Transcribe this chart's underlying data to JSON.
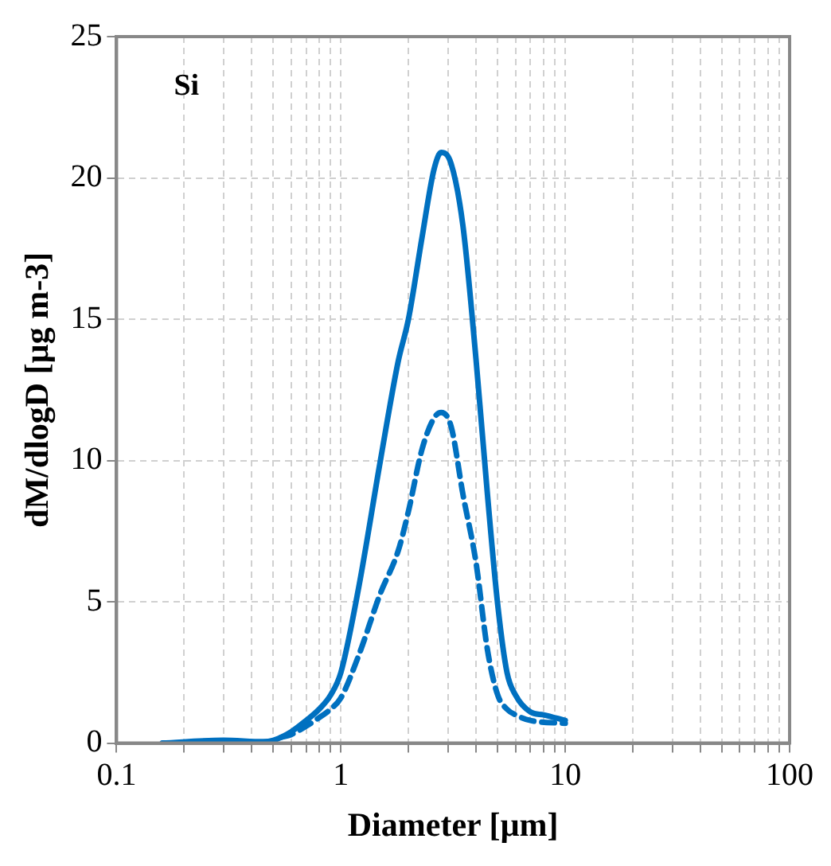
{
  "chart_data": {
    "type": "line",
    "xlabel": "Diameter [µm]",
    "ylabel": "dM/dlogD [µg m-3]",
    "annotations": [
      "Si"
    ],
    "log": "x",
    "grid": true,
    "legend": false,
    "marker": "none",
    "xlim": [
      0.1,
      100
    ],
    "ylim": [
      0,
      25
    ],
    "yticks": [
      0,
      5,
      10,
      15,
      20,
      25
    ],
    "xticks": [
      0.1,
      {
        "value": 0.2,
        "label": null
      },
      {
        "value": 0.3,
        "label": null
      },
      {
        "value": 0.4,
        "label": null
      },
      {
        "value": 0.5,
        "label": null
      },
      {
        "value": 0.6,
        "label": null
      },
      {
        "value": 0.7,
        "label": null
      },
      {
        "value": 0.8,
        "label": null
      },
      {
        "value": 0.9,
        "label": null
      },
      1,
      {
        "value": 2,
        "label": null
      },
      {
        "value": 3,
        "label": null
      },
      {
        "value": 4,
        "label": null
      },
      {
        "value": 5,
        "label": null
      },
      {
        "value": 6,
        "label": null
      },
      {
        "value": 7,
        "label": null
      },
      {
        "value": 8,
        "label": null
      },
      {
        "value": 9,
        "label": null
      },
      10,
      {
        "value": 20,
        "label": null
      },
      {
        "value": 30,
        "label": null
      },
      {
        "value": 40,
        "label": null
      },
      {
        "value": 50,
        "label": null
      },
      {
        "value": 60,
        "label": null
      },
      {
        "value": 70,
        "label": null
      },
      {
        "value": 80,
        "label": null
      },
      {
        "value": 90,
        "label": null
      },
      100
    ],
    "series": [
      {
        "color": "#0070c0",
        "line_style": "solid",
        "x": [
          0.16,
          0.3,
          0.45,
          0.5,
          0.6,
          0.7,
          0.8,
          0.9,
          1.0,
          1.2,
          1.5,
          1.8,
          2.0,
          2.3,
          2.6,
          2.8,
          3.1,
          3.5,
          4,
          4.5,
          5,
          5.5,
          6,
          7,
          8,
          10
        ],
        "values": [
          0,
          0.1,
          0.05,
          0.1,
          0.4,
          0.8,
          1.2,
          1.7,
          2.5,
          5.5,
          10,
          13.5,
          15,
          17.9,
          20.3,
          20.9,
          20.5,
          18.3,
          13.6,
          8.8,
          4.9,
          2.5,
          1.7,
          1.1,
          1.0,
          0.8
        ]
      },
      {
        "color": "#0070c0",
        "line_style": "dashed",
        "x": [
          0.54,
          0.6,
          0.7,
          0.8,
          0.9,
          1.0,
          1.2,
          1.5,
          1.8,
          2.0,
          2.3,
          2.6,
          2.8,
          3.1,
          3.5,
          4,
          4.5,
          5,
          5.5,
          6,
          7,
          10
        ],
        "values": [
          0.2,
          0.3,
          0.6,
          0.9,
          1.2,
          1.6,
          3.1,
          5.3,
          6.8,
          8.2,
          10.4,
          11.5,
          11.7,
          11.2,
          8.8,
          6.4,
          3.3,
          1.7,
          1.2,
          1.0,
          0.8,
          0.7
        ]
      }
    ]
  }
}
